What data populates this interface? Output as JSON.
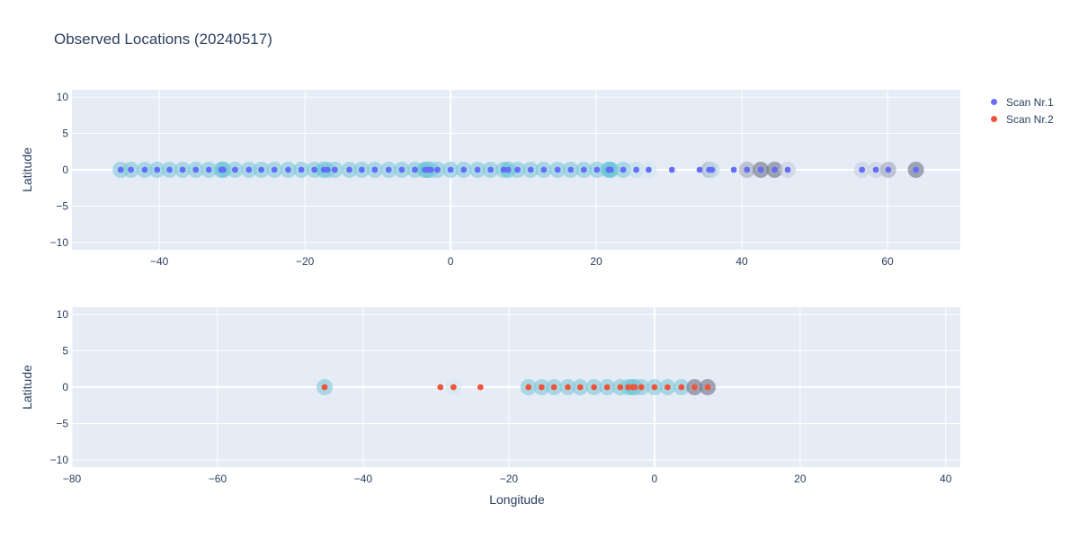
{
  "title": "Observed Locations (20240517)",
  "legend": [
    {
      "name": "Scan Nr.1",
      "color": "#636efa"
    },
    {
      "name": "Scan Nr.2",
      "color": "#ef553b"
    }
  ],
  "chart_data": [
    {
      "type": "scatter",
      "xlabel": "",
      "ylabel": "Latitude",
      "xlim": [
        -52,
        70
      ],
      "ylim": [
        -11,
        11
      ],
      "xticks": [
        -40,
        -20,
        0,
        20,
        40,
        60
      ],
      "yticks": [
        -10,
        -5,
        0,
        5,
        10
      ],
      "grid": true,
      "series": [
        {
          "name": "Scan Nr.1",
          "color": "#636efa",
          "x": [
            -45.3,
            -43.9,
            -42.0,
            -40.3,
            -38.6,
            -36.8,
            -35.0,
            -33.2,
            -31.5,
            -31.2,
            -29.6,
            -27.7,
            -26.0,
            -24.2,
            -22.3,
            -20.5,
            -18.7,
            -17.4,
            -16.9,
            -15.9,
            -13.9,
            -12.2,
            -10.4,
            -8.5,
            -6.7,
            -4.9,
            -3.5,
            -3.1,
            -2.7,
            -1.8,
            0.0,
            1.8,
            3.7,
            5.5,
            7.3,
            7.9,
            9.2,
            11.0,
            12.8,
            14.7,
            16.5,
            18.3,
            20.1,
            21.7,
            22.0,
            23.7,
            25.5,
            27.2,
            30.4,
            34.2,
            35.5,
            35.9,
            38.9,
            40.7,
            42.6,
            44.5,
            46.3,
            56.5,
            58.4,
            60.1,
            63.9
          ],
          "y": [
            0,
            0,
            0,
            0,
            0,
            0,
            0,
            0,
            0,
            0,
            0,
            0,
            0,
            0,
            0,
            0,
            0,
            0,
            0,
            0,
            0,
            0,
            0,
            0,
            0,
            0,
            0,
            0,
            0,
            0,
            0,
            0,
            0,
            0,
            0,
            0,
            0,
            0,
            0,
            0,
            0,
            0,
            0,
            0,
            0,
            0,
            0,
            0,
            0,
            0,
            0,
            0,
            0,
            0,
            0,
            0,
            0,
            0,
            0,
            0,
            0
          ],
          "marker_size": [
            18,
            18,
            18,
            18,
            18,
            18,
            18,
            18,
            18,
            18,
            18,
            18,
            18,
            18,
            18,
            18,
            18,
            18,
            18,
            18,
            18,
            18,
            18,
            18,
            18,
            18,
            18,
            18,
            18,
            18,
            18,
            18,
            18,
            18,
            18,
            18,
            18,
            18,
            18,
            18,
            18,
            18,
            18,
            18,
            18,
            18,
            18,
            18,
            0,
            0,
            18,
            18,
            0,
            18,
            18,
            18,
            18,
            18,
            18,
            18,
            18
          ],
          "marker_color": [
            "#7fc8d9",
            "#7fc8d9",
            "#7fc8d9",
            "#7fc8d9",
            "#7fc8d9",
            "#7fc8d9",
            "#7fc8d9",
            "#7fc8d9",
            "#7fc8d9",
            "#5cc2d3",
            "#7fc8d9",
            "#7fc8d9",
            "#7fc8d9",
            "#7fc8d9",
            "#7fc8d9",
            "#7fc8d9",
            "#7fc8d9",
            "#5cc2d3",
            "#7fc8d9",
            "#7fc8d9",
            "#7fc8d9",
            "#7fc8d9",
            "#7fc8d9",
            "#7fc8d9",
            "#7fc8d9",
            "#7fc8d9",
            "#5cc2d3",
            "#5cc2d3",
            "#7fc8d9",
            "#7fc8d9",
            "#7fc8d9",
            "#7fc8d9",
            "#7fc8d9",
            "#7fc8d9",
            "#7fc8d9",
            "#5cc2d3",
            "#7fc8d9",
            "#7fc8d9",
            "#7fc8d9",
            "#7fc8d9",
            "#7fc8d9",
            "#7fc8d9",
            "#7fc8d9",
            "#5cc2d3",
            "#5cc2d3",
            "#7fc8d9",
            "#b8dde8",
            "#d2e6ee",
            "#ffffff",
            "#ffffff",
            "#a2a7b8",
            "#b8dde8",
            "#ffffff",
            "#a2a7b8",
            "#6c7186",
            "#6c7186",
            "#c5cfdf",
            "#c5cfdf",
            "#c5cfdf",
            "#a2a7b8",
            "#6c7186"
          ]
        }
      ]
    },
    {
      "type": "scatter",
      "xlabel": "Longitude",
      "ylabel": "Latitude",
      "xlim": [
        -80,
        42
      ],
      "ylim": [
        -11,
        11
      ],
      "xticks": [
        -80,
        -60,
        -40,
        -20,
        0,
        20,
        40
      ],
      "yticks": [
        -10,
        -5,
        0,
        5,
        10
      ],
      "grid": true,
      "series": [
        {
          "name": "Scan Nr.2",
          "color": "#ef553b",
          "x": [
            -45.3,
            -29.4,
            -27.6,
            -23.9,
            -17.3,
            -15.5,
            -13.8,
            -11.9,
            -10.2,
            -8.3,
            -6.5,
            -4.7,
            -3.6,
            -3.0,
            -2.7,
            -1.8,
            0.0,
            1.8,
            3.7,
            5.5,
            7.3
          ],
          "y": [
            0,
            0,
            0,
            0,
            0,
            0,
            0,
            0,
            0,
            0,
            0,
            0,
            0,
            0,
            0,
            0,
            0,
            0,
            0,
            0,
            0
          ],
          "marker_size": [
            18,
            0,
            18,
            0,
            18,
            18,
            18,
            18,
            18,
            18,
            18,
            18,
            18,
            18,
            18,
            18,
            18,
            18,
            18,
            18,
            18
          ],
          "marker_color": [
            "#7fc8d9",
            "#ffffff",
            "#d2e6ee",
            "#ffffff",
            "#7fc8d9",
            "#7fc8d9",
            "#7fc8d9",
            "#7fc8d9",
            "#7fc8d9",
            "#7fc8d9",
            "#7fc8d9",
            "#7fc8d9",
            "#7fc8d9",
            "#5cc2d3",
            "#7fc8d9",
            "#7fc8d9",
            "#7fc8d9",
            "#7fc8d9",
            "#7fc8d9",
            "#6c7186",
            "#6c7186"
          ]
        }
      ]
    }
  ]
}
